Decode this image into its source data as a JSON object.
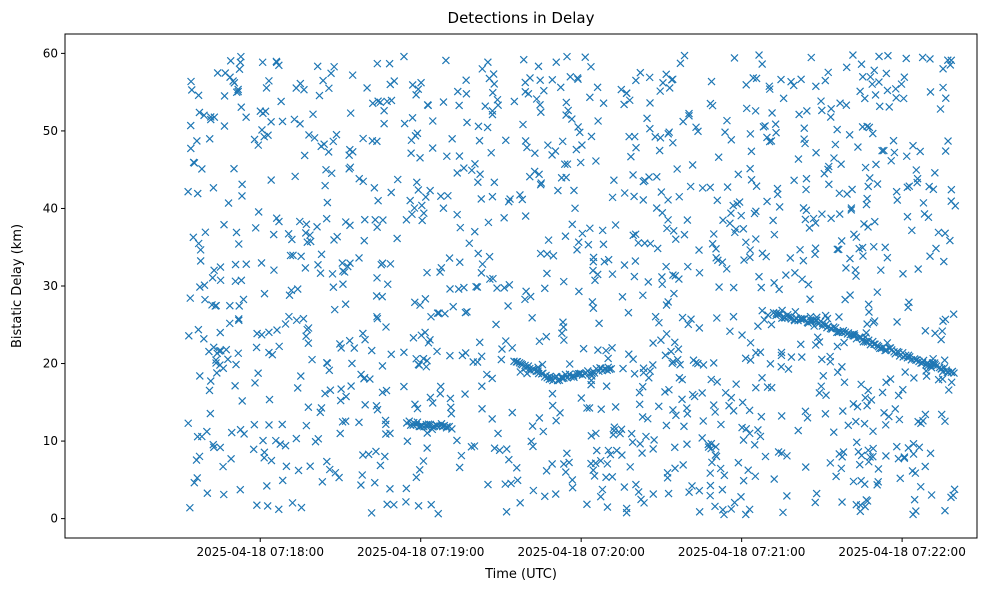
{
  "chart_data": {
    "type": "scatter",
    "title": "Detections in Delay",
    "xlabel": "Time (UTC)",
    "ylabel": "Bistatic Delay (km)",
    "x_type": "time",
    "xlim": [
      "2025-04-18 07:16:47",
      "2025-04-18 07:22:28"
    ],
    "ylim": [
      -2.5,
      62.5
    ],
    "x_ticks": [
      "2025-04-18 07:18:00",
      "2025-04-18 07:19:00",
      "2025-04-18 07:20:00",
      "2025-04-18 07:21:00",
      "2025-04-18 07:22:00"
    ],
    "y_ticks": [
      0,
      10,
      20,
      30,
      40,
      50,
      60
    ],
    "marker": "x",
    "color": "#1f77b4",
    "grid": false,
    "legend": "none",
    "x_range": [
      "2025-04-18 07:17:33",
      "2025-04-18 07:22:20"
    ],
    "y_range": [
      0.5,
      59.8
    ],
    "tracks": [
      {
        "t": [
          "2025-04-18 07:18:55",
          "2025-04-18 07:19:12"
        ],
        "y": [
          12.3,
          11.8
        ]
      },
      {
        "t": [
          "2025-04-18 07:19:35",
          "2025-04-18 07:19:50",
          "2025-04-18 07:20:12"
        ],
        "y": [
          20.3,
          18.0,
          19.5
        ]
      },
      {
        "t": [
          "2025-04-18 07:21:12",
          "2025-04-18 07:21:25",
          "2025-04-18 07:21:30"
        ],
        "y": [
          26.3,
          25.5,
          25.3
        ]
      },
      {
        "t": [
          "2025-04-18 07:21:30",
          "2025-04-18 07:22:20"
        ],
        "y": [
          25.0,
          18.6
        ]
      }
    ]
  }
}
